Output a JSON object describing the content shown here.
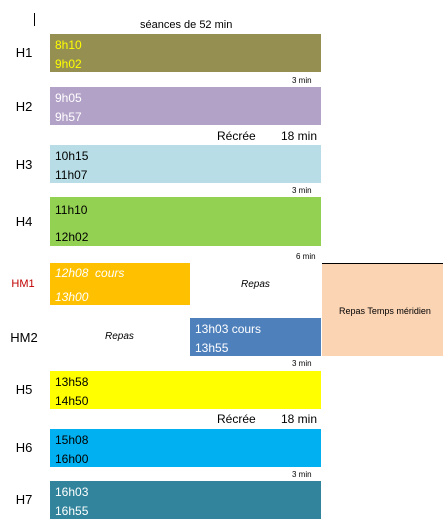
{
  "title": "séances de 52 min",
  "rows": [
    {
      "label": "H1",
      "start": "8h10",
      "end": "9h02"
    },
    {
      "label": "H2",
      "start": "9h05",
      "end": "9h57"
    },
    {
      "label": "H3",
      "start": "10h15",
      "end": "11h07"
    },
    {
      "label": "H4",
      "start": "11h10",
      "end": "12h02"
    },
    {
      "label": "HM1",
      "start": "12h08  cours",
      "end": "13h00",
      "repas": "Repas"
    },
    {
      "label": "HM2",
      "repas": "Repas",
      "start": "13h03 cours",
      "end": "13h55"
    },
    {
      "label": "H5",
      "start": "13h58",
      "end": "14h50"
    },
    {
      "label": "H6",
      "start": "15h08",
      "end": "16h00"
    },
    {
      "label": "H7",
      "start": "16h03",
      "end": "16h55"
    }
  ],
  "gaps": {
    "after_h1": "3 min",
    "after_h3": "3 min",
    "after_h4": "6 min",
    "after_hm2": "3 min",
    "after_h6": "3 min"
  },
  "recreations": [
    {
      "label": "Récrée",
      "duration": "18 min"
    },
    {
      "label": "Récrée",
      "duration": "18 min"
    }
  ],
  "meridien": "Repas Temps méridien",
  "colors": {
    "h1": "#958f52",
    "h2": "#b3a2c8",
    "h3": "#b8dde6",
    "h4": "#93d152",
    "hm1": "#ffc000",
    "hm2": "#4e80bc",
    "h5": "#ffff00",
    "h6": "#00b0f0",
    "h7": "#31849b",
    "meridien": "#fbd4b4",
    "hm1_label": "#c00000"
  }
}
